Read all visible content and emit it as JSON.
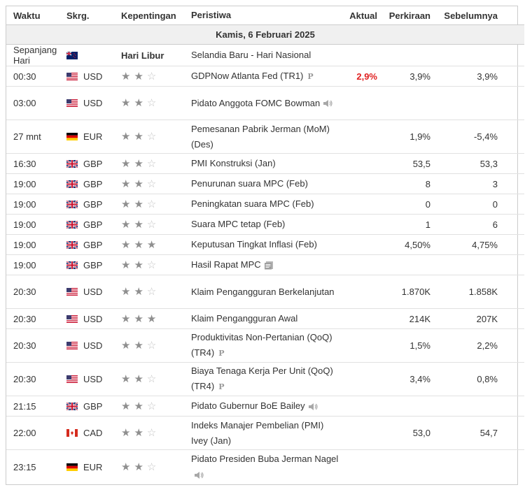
{
  "headers": {
    "time": "Waktu",
    "currency": "Skrg.",
    "importance": "Kepentingan",
    "event": "Peristiwa",
    "actual": "Aktual",
    "forecast": "Perkiraan",
    "previous": "Sebelumnya"
  },
  "date_label": "Kamis, 6 Februari 2025",
  "rows": [
    {
      "time": "Sepanjang Hari",
      "flag": "nz",
      "currency": "",
      "importance_text": "Hari Libur",
      "event": "Selandia Baru - Hari Nasional",
      "actual": "",
      "forecast": "",
      "previous": ""
    },
    {
      "time": "00:30",
      "flag": "us",
      "currency": "USD",
      "stars": 2,
      "event": "GDPNow Atlanta Fed (TR1)",
      "marker": "P",
      "actual": "2,9%",
      "actual_color": "#e02121",
      "forecast": "3,9%",
      "previous": "3,9%"
    },
    {
      "time": "03:00",
      "flag": "us",
      "currency": "USD",
      "stars": 2,
      "event": "Pidato Anggota FOMC Bowman",
      "marker": "speaker-icon",
      "actual": "",
      "forecast": "",
      "previous": ""
    },
    {
      "time": "27 mnt",
      "flag": "de",
      "currency": "EUR",
      "stars": 2,
      "event": "Pemesanan Pabrik Jerman (MoM) (Des)",
      "actual": "",
      "forecast": "1,9%",
      "previous": "-5,4%"
    },
    {
      "time": "16:30",
      "flag": "gb",
      "currency": "GBP",
      "stars": 2,
      "event": "PMI Konstruksi (Jan)",
      "actual": "",
      "forecast": "53,5",
      "previous": "53,3"
    },
    {
      "time": "19:00",
      "flag": "gb",
      "currency": "GBP",
      "stars": 2,
      "event": "Penurunan suara MPC (Feb)",
      "actual": "",
      "forecast": "8",
      "previous": "3"
    },
    {
      "time": "19:00",
      "flag": "gb",
      "currency": "GBP",
      "stars": 2,
      "event": "Peningkatan suara MPC (Feb)",
      "actual": "",
      "forecast": "0",
      "previous": "0"
    },
    {
      "time": "19:00",
      "flag": "gb",
      "currency": "GBP",
      "stars": 2,
      "event": "Suara MPC tetap (Feb)",
      "actual": "",
      "forecast": "1",
      "previous": "6"
    },
    {
      "time": "19:00",
      "flag": "gb",
      "currency": "GBP",
      "stars": 3,
      "event": "Keputusan Tingkat Inflasi (Feb)",
      "actual": "",
      "forecast": "4,50%",
      "previous": "4,75%"
    },
    {
      "time": "19:00",
      "flag": "gb",
      "currency": "GBP",
      "stars": 2,
      "event": "Hasil Rapat MPC",
      "marker": "document-icon",
      "actual": "",
      "forecast": "",
      "previous": ""
    },
    {
      "time": "20:30",
      "flag": "us",
      "currency": "USD",
      "stars": 2,
      "event": "Klaim Pengangguran Berkelanjutan",
      "actual": "",
      "forecast": "1.870K",
      "previous": "1.858K"
    },
    {
      "time": "20:30",
      "flag": "us",
      "currency": "USD",
      "stars": 3,
      "event": "Klaim Pengangguran Awal",
      "actual": "",
      "forecast": "214K",
      "previous": "207K"
    },
    {
      "time": "20:30",
      "flag": "us",
      "currency": "USD",
      "stars": 2,
      "event": "Produktivitas Non-Pertanian (QoQ) (TR4)",
      "marker": "P",
      "actual": "",
      "forecast": "1,5%",
      "previous": "2,2%"
    },
    {
      "time": "20:30",
      "flag": "us",
      "currency": "USD",
      "stars": 2,
      "event": "Biaya Tenaga Kerja Per Unit (QoQ) (TR4)",
      "marker": "P",
      "actual": "",
      "forecast": "3,4%",
      "previous": "0,8%"
    },
    {
      "time": "21:15",
      "flag": "gb",
      "currency": "GBP",
      "stars": 2,
      "event": "Pidato Gubernur BoE Bailey",
      "marker": "speaker-icon",
      "actual": "",
      "forecast": "",
      "previous": ""
    },
    {
      "time": "22:00",
      "flag": "ca",
      "currency": "CAD",
      "stars": 2,
      "event": "Indeks Manajer Pembelian (PMI) Ivey (Jan)",
      "actual": "",
      "forecast": "53,0",
      "previous": "54,7"
    },
    {
      "time": "23:15",
      "flag": "de",
      "currency": "EUR",
      "stars": 2,
      "event": "Pidato Presiden Buba Jerman Nagel",
      "marker": "speaker-icon",
      "actual": "",
      "forecast": "",
      "previous": ""
    }
  ]
}
